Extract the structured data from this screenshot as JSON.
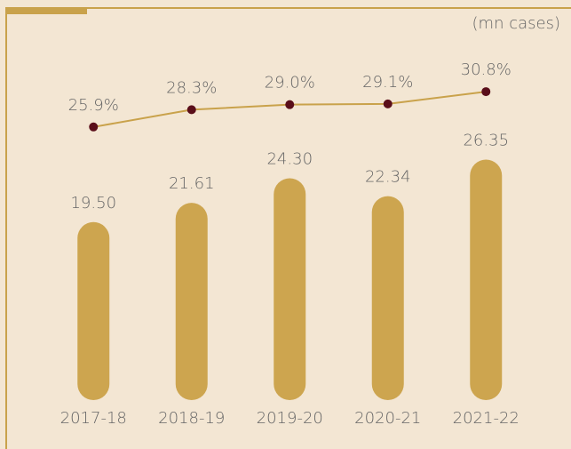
{
  "chart_data": {
    "type": "bar",
    "unit_label": "(mn cases)",
    "categories": [
      "2017-18",
      "2018-19",
      "2019-20",
      "2020-21",
      "2021-22"
    ],
    "series": [
      {
        "values": [
          19.5,
          21.61,
          24.3,
          22.34,
          26.35
        ],
        "value_labels": [
          "19.50",
          "21.61",
          "24.30",
          "22.34",
          "26.35"
        ],
        "color": "#cda54f"
      },
      {
        "type": "line",
        "axis": "y2",
        "values": [
          25.9,
          28.3,
          29.0,
          29.1,
          30.8
        ],
        "value_labels": [
          "25.9%",
          "28.3%",
          "29.0%",
          "29.1%",
          "30.8%"
        ],
        "color": "#c9a24b",
        "marker_color": "#5a0e1a"
      }
    ],
    "ylim": [
      0,
      30
    ],
    "y2lim": [
      -12,
      26
    ]
  }
}
